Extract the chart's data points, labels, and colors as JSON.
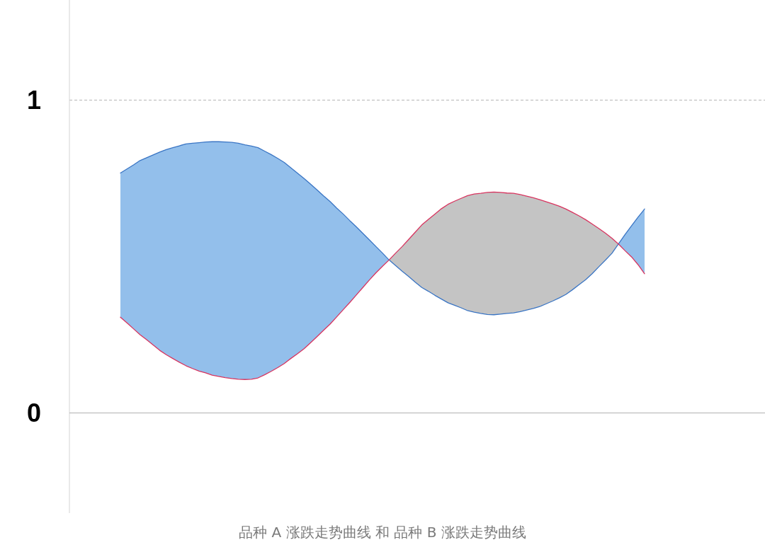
{
  "chart_data": {
    "type": "line",
    "xlabel": "品种 A 涨跌走势曲线 和 品种 B 涨跌走势曲线",
    "categories": [
      null,
      null,
      null,
      null,
      null,
      null,
      null,
      null,
      null,
      null,
      null,
      null,
      null,
      null,
      null,
      null,
      null,
      null,
      null,
      null,
      null,
      null,
      null,
      null,
      null,
      null,
      null,
      null,
      null,
      null,
      null,
      null,
      null,
      null,
      null,
      null,
      null,
      null,
      null,
      null,
      null,
      null,
      null,
      null,
      null,
      null,
      null,
      null,
      null,
      null,
      null,
      null,
      null,
      null,
      null,
      null,
      null,
      null,
      null,
      null,
      null,
      null,
      null,
      null,
      null,
      null,
      null,
      null,
      null,
      null,
      null,
      null,
      null,
      null,
      null,
      null,
      null,
      null,
      null,
      null,
      null
    ],
    "series": [
      {
        "type": "area",
        "color": "#93bfeb",
        "values": [
          null,
          null,
          null,
          null,
          null,
          null,
          null,
          null,
          null,
          null,
          null,
          null,
          null,
          null,
          null,
          null,
          null,
          null,
          null,
          null,
          null,
          null,
          null,
          null,
          null,
          null,
          null,
          null,
          null,
          null,
          null,
          null,
          null,
          null,
          null,
          null,
          null,
          null,
          null,
          null,
          null,
          null,
          null,
          null,
          null,
          null,
          null,
          null,
          null,
          null,
          null,
          null,
          null,
          null,
          null,
          null,
          null,
          null,
          null,
          null,
          null,
          null,
          null,
          null,
          null,
          null,
          null,
          null,
          null,
          null,
          null,
          null,
          null,
          null,
          null,
          null,
          null,
          null,
          null,
          null,
          null
        ],
        "lower": [
          0.306,
          0.288,
          0.269,
          0.25,
          0.234,
          0.217,
          0.2,
          0.186,
          0.174,
          0.162,
          0.151,
          0.142,
          0.134,
          0.128,
          0.121,
          0.117,
          0.113,
          0.11,
          0.108,
          0.107,
          0.108,
          0.112,
          0.122,
          0.133,
          0.145,
          0.158,
          0.174,
          0.189,
          0.205,
          0.224,
          0.244,
          0.264,
          0.284,
          0.307,
          0.33,
          0.353,
          0.377,
          0.401,
          0.425,
          0.448,
          0.469,
          0.489,
          null,
          null,
          null,
          null,
          null,
          null,
          null,
          null,
          null,
          null,
          null,
          null,
          null,
          null,
          null,
          null,
          null,
          null,
          null,
          null,
          null,
          null,
          null,
          null,
          null,
          null,
          null,
          null,
          null,
          null,
          null,
          null,
          null,
          null,
          0.54,
          0.519,
          0.499,
          0.474,
          0.445
        ],
        "upper": [
          0.767,
          0.78,
          0.793,
          0.807,
          0.816,
          0.825,
          0.834,
          0.842,
          0.848,
          0.854,
          0.86,
          0.862,
          0.864,
          0.866,
          0.867,
          0.867,
          0.866,
          0.865,
          0.862,
          0.857,
          0.853,
          0.848,
          0.837,
          0.826,
          0.814,
          0.801,
          0.784,
          0.767,
          0.75,
          0.732,
          0.713,
          0.694,
          0.676,
          0.655,
          0.636,
          0.615,
          0.595,
          0.574,
          0.553,
          0.532,
          0.511,
          0.489,
          null,
          null,
          null,
          null,
          null,
          null,
          null,
          null,
          null,
          null,
          null,
          null,
          null,
          null,
          null,
          null,
          null,
          null,
          null,
          null,
          null,
          null,
          null,
          null,
          null,
          null,
          null,
          null,
          null,
          null,
          null,
          null,
          null,
          null,
          0.54,
          0.57,
          0.598,
          0.626,
          0.652
        ]
      },
      {
        "type": "area",
        "color": "#c4c4c4",
        "values": [
          null,
          null,
          null,
          null,
          null,
          null,
          null,
          null,
          null,
          null,
          null,
          null,
          null,
          null,
          null,
          null,
          null,
          null,
          null,
          null,
          null,
          null,
          null,
          null,
          null,
          null,
          null,
          null,
          null,
          null,
          null,
          null,
          null,
          null,
          null,
          null,
          null,
          null,
          null,
          null,
          null,
          null,
          null,
          null,
          null,
          null,
          null,
          null,
          null,
          null,
          null,
          null,
          null,
          null,
          null,
          null,
          null,
          null,
          null,
          null,
          null,
          null,
          null,
          null,
          null,
          null,
          null,
          null,
          null,
          null,
          null,
          null,
          null,
          null,
          null,
          null,
          null,
          null,
          null,
          null,
          null
        ],
        "lower": [
          null,
          null,
          null,
          null,
          null,
          null,
          null,
          null,
          null,
          null,
          null,
          null,
          null,
          null,
          null,
          null,
          null,
          null,
          null,
          null,
          null,
          null,
          null,
          null,
          null,
          null,
          null,
          null,
          null,
          null,
          null,
          null,
          null,
          null,
          null,
          null,
          null,
          null,
          null,
          null,
          null,
          0.489,
          0.471,
          0.453,
          0.436,
          0.418,
          0.401,
          0.389,
          0.376,
          0.364,
          0.352,
          0.344,
          0.336,
          0.327,
          0.322,
          0.318,
          0.315,
          0.314,
          0.316,
          0.318,
          0.32,
          0.324,
          0.329,
          0.334,
          0.34,
          0.349,
          0.358,
          0.368,
          0.379,
          0.394,
          0.41,
          0.426,
          0.445,
          0.467,
          0.488,
          0.51,
          0.54,
          null,
          null,
          null,
          null
        ],
        "upper": [
          null,
          null,
          null,
          null,
          null,
          null,
          null,
          null,
          null,
          null,
          null,
          null,
          null,
          null,
          null,
          null,
          null,
          null,
          null,
          null,
          null,
          null,
          null,
          null,
          null,
          null,
          null,
          null,
          null,
          null,
          null,
          null,
          null,
          null,
          null,
          null,
          null,
          null,
          null,
          null,
          null,
          0.489,
          0.511,
          0.532,
          0.555,
          0.578,
          0.601,
          0.619,
          0.636,
          0.653,
          0.667,
          0.677,
          0.686,
          0.695,
          0.7,
          0.702,
          0.705,
          0.706,
          0.705,
          0.703,
          0.702,
          0.698,
          0.693,
          0.688,
          0.682,
          0.675,
          0.668,
          0.661,
          0.652,
          0.641,
          0.63,
          0.618,
          0.604,
          0.59,
          0.575,
          0.559,
          0.54,
          null,
          null,
          null,
          null
        ]
      },
      {
        "color": "#3a75c4",
        "values": [
          0.767,
          0.78,
          0.793,
          0.807,
          0.816,
          0.825,
          0.834,
          0.842,
          0.848,
          0.854,
          0.86,
          0.862,
          0.864,
          0.866,
          0.867,
          0.867,
          0.866,
          0.865,
          0.862,
          0.857,
          0.853,
          0.848,
          0.837,
          0.826,
          0.814,
          0.801,
          0.784,
          0.767,
          0.75,
          0.732,
          0.713,
          0.694,
          0.676,
          0.655,
          0.636,
          0.615,
          0.595,
          0.574,
          0.553,
          0.532,
          0.511,
          0.489,
          0.471,
          0.453,
          0.436,
          0.418,
          0.401,
          0.389,
          0.376,
          0.364,
          0.352,
          0.344,
          0.336,
          0.327,
          0.322,
          0.318,
          0.315,
          0.314,
          0.316,
          0.318,
          0.32,
          0.324,
          0.329,
          0.334,
          0.34,
          0.349,
          0.358,
          0.368,
          0.379,
          0.394,
          0.41,
          0.426,
          0.445,
          0.467,
          0.488,
          0.51,
          0.54,
          0.57,
          0.598,
          0.626,
          0.652
        ]
      },
      {
        "color": "#d8345f",
        "values": [
          0.306,
          0.288,
          0.269,
          0.25,
          0.234,
          0.217,
          0.2,
          0.186,
          0.174,
          0.162,
          0.151,
          0.142,
          0.134,
          0.128,
          0.121,
          0.117,
          0.113,
          0.11,
          0.108,
          0.107,
          0.108,
          0.112,
          0.122,
          0.133,
          0.145,
          0.158,
          0.174,
          0.189,
          0.205,
          0.224,
          0.244,
          0.264,
          0.284,
          0.307,
          0.33,
          0.353,
          0.377,
          0.401,
          0.425,
          0.448,
          0.469,
          0.489,
          0.511,
          0.532,
          0.555,
          0.578,
          0.601,
          0.619,
          0.636,
          0.653,
          0.667,
          0.677,
          0.686,
          0.695,
          0.7,
          0.702,
          0.705,
          0.706,
          0.705,
          0.703,
          0.702,
          0.698,
          0.693,
          0.688,
          0.682,
          0.675,
          0.668,
          0.661,
          0.652,
          0.641,
          0.63,
          0.618,
          0.604,
          0.59,
          0.575,
          0.559,
          0.54,
          0.519,
          0.499,
          0.474,
          0.445
        ]
      }
    ],
    "ylim": [
      -0.32,
      1.32
    ],
    "yticks": [
      0,
      1
    ],
    "ref_lines": [
      {
        "axis": "y",
        "value": 1,
        "color": "#b5b5b5",
        "line_style": "dashed"
      }
    ]
  }
}
